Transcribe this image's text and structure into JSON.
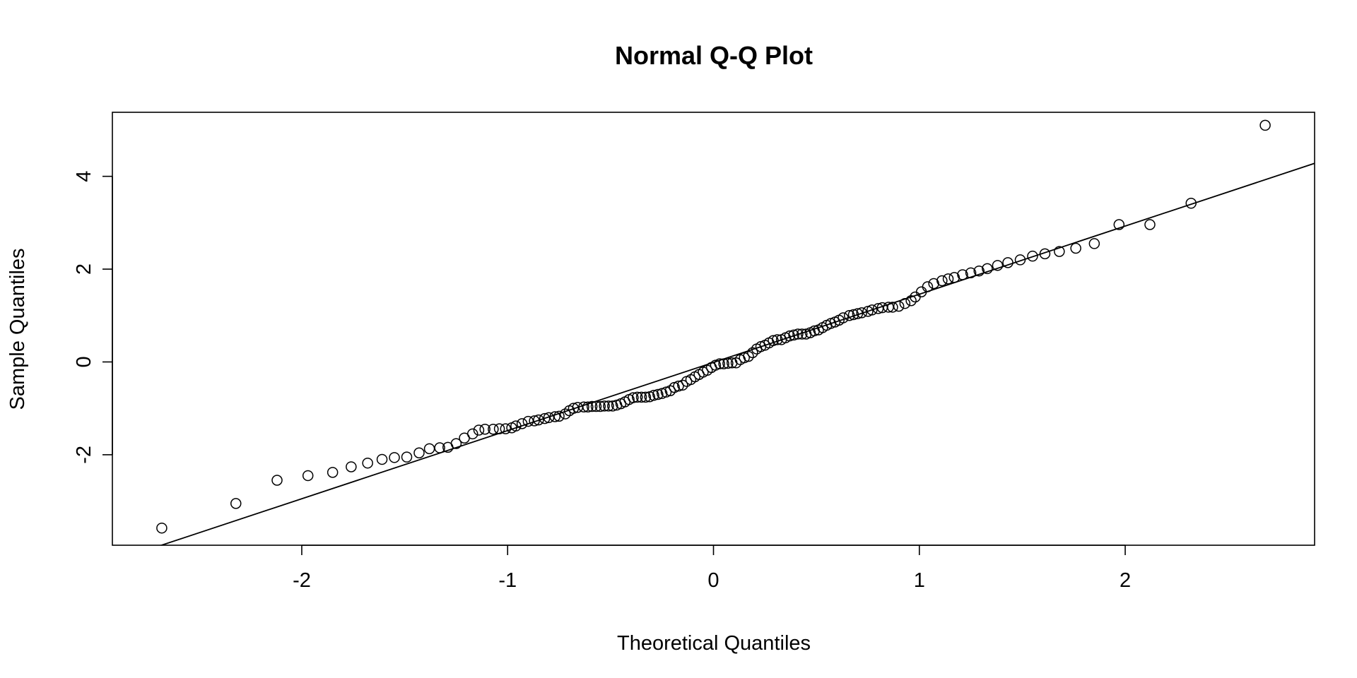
{
  "chart_data": {
    "type": "scatter",
    "title": "Normal Q-Q Plot",
    "xlabel": "Theoretical Quantiles",
    "ylabel": "Sample Quantiles",
    "xlim": [
      -2.92,
      2.92
    ],
    "ylim": [
      -3.95,
      5.38
    ],
    "x_ticks": [
      -2,
      -1,
      0,
      1,
      2
    ],
    "x_tick_labels": [
      "-2",
      "-1",
      "0",
      "1",
      "2"
    ],
    "y_ticks": [
      -2,
      0,
      2,
      4
    ],
    "y_tick_labels": [
      "-2",
      "0",
      "2",
      "4"
    ],
    "grid": false,
    "legend": "none",
    "reference_line": {
      "x": [
        -2.92,
        2.92
      ],
      "y": [
        -4.3,
        4.28
      ]
    },
    "points": [
      [
        -2.68,
        -3.58
      ],
      [
        -2.32,
        -3.05
      ],
      [
        -2.12,
        -2.55
      ],
      [
        -1.97,
        -2.45
      ],
      [
        -1.85,
        -2.38
      ],
      [
        -1.76,
        -2.26
      ],
      [
        -1.68,
        -2.18
      ],
      [
        -1.61,
        -2.1
      ],
      [
        -1.55,
        -2.06
      ],
      [
        -1.49,
        -2.05
      ],
      [
        -1.43,
        -1.96
      ],
      [
        -1.38,
        -1.87
      ],
      [
        -1.33,
        -1.85
      ],
      [
        -1.29,
        -1.84
      ],
      [
        -1.25,
        -1.76
      ],
      [
        -1.21,
        -1.64
      ],
      [
        -1.17,
        -1.55
      ],
      [
        -1.14,
        -1.47
      ],
      [
        -1.11,
        -1.45
      ],
      [
        -1.07,
        -1.45
      ],
      [
        -1.04,
        -1.44
      ],
      [
        -1.01,
        -1.44
      ],
      [
        -0.98,
        -1.42
      ],
      [
        -0.96,
        -1.38
      ],
      [
        -0.93,
        -1.33
      ],
      [
        -0.9,
        -1.28
      ],
      [
        -0.87,
        -1.27
      ],
      [
        -0.85,
        -1.25
      ],
      [
        -0.82,
        -1.22
      ],
      [
        -0.8,
        -1.2
      ],
      [
        -0.77,
        -1.18
      ],
      [
        -0.75,
        -1.17
      ],
      [
        -0.72,
        -1.12
      ],
      [
        -0.7,
        -1.05
      ],
      [
        -0.68,
        -1.0
      ],
      [
        -0.66,
        -0.98
      ],
      [
        -0.63,
        -0.97
      ],
      [
        -0.61,
        -0.97
      ],
      [
        -0.59,
        -0.96
      ],
      [
        -0.57,
        -0.96
      ],
      [
        -0.55,
        -0.96
      ],
      [
        -0.53,
        -0.95
      ],
      [
        -0.51,
        -0.95
      ],
      [
        -0.49,
        -0.95
      ],
      [
        -0.47,
        -0.93
      ],
      [
        -0.45,
        -0.9
      ],
      [
        -0.43,
        -0.86
      ],
      [
        -0.41,
        -0.81
      ],
      [
        -0.39,
        -0.77
      ],
      [
        -0.37,
        -0.76
      ],
      [
        -0.35,
        -0.76
      ],
      [
        -0.33,
        -0.76
      ],
      [
        -0.31,
        -0.75
      ],
      [
        -0.29,
        -0.72
      ],
      [
        -0.27,
        -0.7
      ],
      [
        -0.25,
        -0.68
      ],
      [
        -0.23,
        -0.65
      ],
      [
        -0.21,
        -0.62
      ],
      [
        -0.19,
        -0.55
      ],
      [
        -0.17,
        -0.52
      ],
      [
        -0.15,
        -0.5
      ],
      [
        -0.13,
        -0.42
      ],
      [
        -0.11,
        -0.38
      ],
      [
        -0.09,
        -0.32
      ],
      [
        -0.07,
        -0.27
      ],
      [
        -0.05,
        -0.22
      ],
      [
        -0.03,
        -0.18
      ],
      [
        -0.01,
        -0.12
      ],
      [
        0.01,
        -0.07
      ],
      [
        0.03,
        -0.04
      ],
      [
        0.05,
        -0.04
      ],
      [
        0.07,
        -0.03
      ],
      [
        0.09,
        -0.02
      ],
      [
        0.11,
        -0.02
      ],
      [
        0.13,
        0.05
      ],
      [
        0.15,
        0.09
      ],
      [
        0.17,
        0.12
      ],
      [
        0.19,
        0.2
      ],
      [
        0.21,
        0.28
      ],
      [
        0.23,
        0.33
      ],
      [
        0.25,
        0.36
      ],
      [
        0.27,
        0.41
      ],
      [
        0.29,
        0.46
      ],
      [
        0.31,
        0.48
      ],
      [
        0.33,
        0.48
      ],
      [
        0.35,
        0.52
      ],
      [
        0.37,
        0.56
      ],
      [
        0.39,
        0.58
      ],
      [
        0.41,
        0.6
      ],
      [
        0.43,
        0.6
      ],
      [
        0.45,
        0.6
      ],
      [
        0.47,
        0.63
      ],
      [
        0.49,
        0.67
      ],
      [
        0.51,
        0.69
      ],
      [
        0.53,
        0.74
      ],
      [
        0.55,
        0.79
      ],
      [
        0.57,
        0.83
      ],
      [
        0.59,
        0.86
      ],
      [
        0.61,
        0.9
      ],
      [
        0.63,
        0.95
      ],
      [
        0.66,
        1.0
      ],
      [
        0.68,
        1.02
      ],
      [
        0.7,
        1.04
      ],
      [
        0.72,
        1.06
      ],
      [
        0.75,
        1.09
      ],
      [
        0.77,
        1.12
      ],
      [
        0.8,
        1.15
      ],
      [
        0.82,
        1.17
      ],
      [
        0.85,
        1.18
      ],
      [
        0.87,
        1.18
      ],
      [
        0.9,
        1.2
      ],
      [
        0.93,
        1.26
      ],
      [
        0.96,
        1.32
      ],
      [
        0.98,
        1.4
      ],
      [
        1.01,
        1.51
      ],
      [
        1.04,
        1.62
      ],
      [
        1.07,
        1.69
      ],
      [
        1.11,
        1.75
      ],
      [
        1.14,
        1.79
      ],
      [
        1.17,
        1.82
      ],
      [
        1.21,
        1.88
      ],
      [
        1.25,
        1.92
      ],
      [
        1.29,
        1.96
      ],
      [
        1.33,
        2.01
      ],
      [
        1.38,
        2.08
      ],
      [
        1.43,
        2.14
      ],
      [
        1.49,
        2.2
      ],
      [
        1.55,
        2.28
      ],
      [
        1.61,
        2.33
      ],
      [
        1.68,
        2.38
      ],
      [
        1.76,
        2.45
      ],
      [
        1.85,
        2.55
      ],
      [
        1.97,
        2.96
      ],
      [
        2.12,
        2.96
      ],
      [
        2.32,
        3.42
      ],
      [
        2.68,
        5.1
      ]
    ]
  }
}
